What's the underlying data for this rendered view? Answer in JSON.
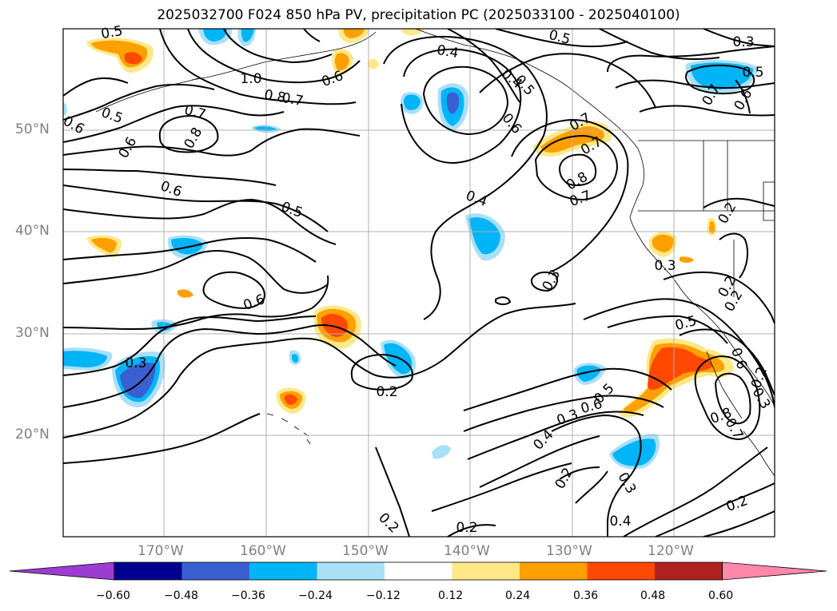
{
  "title": "2025032700 F024 850 hPa PV, precipitation PC (2025033100 - 2025040100)",
  "lat_labels": [
    "50°N",
    "40°N",
    "30°N",
    "20°N"
  ],
  "lon_labels": [
    "170°W",
    "160°W",
    "150°W",
    "140°W",
    "130°W",
    "120°W"
  ],
  "colorbar": {
    "ticks": [
      "−0.60",
      "−0.48",
      "−0.36",
      "−0.24",
      "−0.12",
      "0.12",
      "0.24",
      "0.36",
      "0.48",
      "0.60"
    ],
    "colors": [
      "#9c3cd0",
      "#000090",
      "#3a5fd0",
      "#00b4f8",
      "#a8e0f8",
      "#ffffff",
      "#ffe888",
      "#ffa000",
      "#ff4800",
      "#b02020",
      "#ff88aa"
    ]
  },
  "contour_labels": [
    "0.5",
    "0.4",
    "0.5",
    "0.3",
    "0.5",
    "1.0",
    "0.8",
    "0.7",
    "0.6",
    "0.5",
    "0.7",
    "0.8",
    "0.6",
    "0.6",
    "0.6",
    "0.5",
    "0.6",
    "0.7",
    "0.6",
    "0.7",
    "0.4",
    "0.8",
    "0.7",
    "0.4",
    "0.5",
    "0.7",
    "0.6",
    "0.3",
    "0.2",
    "0.3",
    "0.6",
    "0.3",
    "0.5",
    "0.2",
    "0.2",
    "0.2",
    "0.5",
    "0.4",
    "0.6",
    "0.2",
    "0.3",
    "0.4",
    "0.3",
    "0.2",
    "0.8",
    "0.7",
    "0.3",
    "0.2",
    "0.2",
    "0.2"
  ]
}
